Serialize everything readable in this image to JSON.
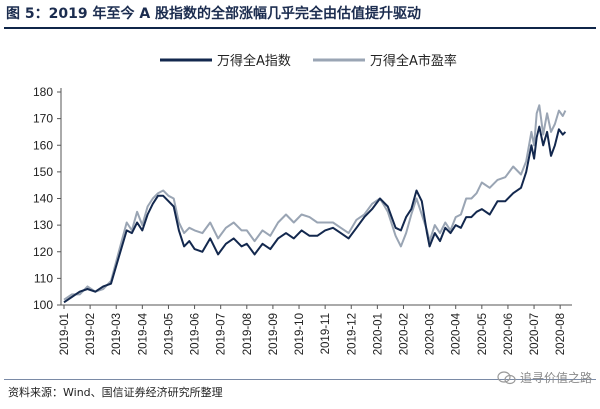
{
  "header": {
    "title": "图 5：2019 年至今 A 股指数的全部涨幅几乎完全由估值提升驱动"
  },
  "footer": {
    "source": "资料来源：Wind、国信证券经济研究所整理",
    "watermark": "追寻价值之路"
  },
  "colors": {
    "series_index": "#13284e",
    "series_pe": "#9aa5b4",
    "title_rule": "#0f2548"
  },
  "chart_data": {
    "type": "line",
    "ylim": [
      100,
      180
    ],
    "yticks": [
      100,
      110,
      120,
      130,
      140,
      150,
      160,
      170,
      180
    ],
    "xticks": [
      "2019-01",
      "2019-02",
      "2019-03",
      "2019-04",
      "2019-05",
      "2019-06",
      "2019-07",
      "2019-08",
      "2019-09",
      "2019-10",
      "2019-11",
      "2019-12",
      "2020-01",
      "2020-02",
      "2020-03",
      "2020-04",
      "2020-05",
      "2020-06",
      "2020-07",
      "2020-08"
    ],
    "xlim": [
      0,
      19.3
    ],
    "legend_position": "top-center",
    "grid": false,
    "series": [
      {
        "name": "万得全A指数",
        "x": [
          0,
          0.3,
          0.6,
          0.9,
          1.2,
          1.5,
          1.8,
          2.1,
          2.4,
          2.6,
          2.8,
          3.0,
          3.2,
          3.4,
          3.6,
          3.8,
          4.0,
          4.2,
          4.4,
          4.6,
          4.8,
          5.0,
          5.3,
          5.6,
          5.9,
          6.2,
          6.5,
          6.8,
          7.0,
          7.3,
          7.6,
          7.9,
          8.2,
          8.5,
          8.8,
          9.1,
          9.4,
          9.7,
          10.0,
          10.3,
          10.6,
          10.9,
          11.2,
          11.5,
          11.8,
          12.1,
          12.4,
          12.7,
          12.9,
          13.1,
          13.3,
          13.5,
          13.7,
          13.9,
          14.0,
          14.2,
          14.4,
          14.6,
          14.8,
          15.0,
          15.2,
          15.4,
          15.6,
          15.8,
          16.0,
          16.3,
          16.6,
          16.9,
          17.2,
          17.5,
          17.7,
          17.9,
          18.0,
          18.1,
          18.2,
          18.35,
          18.5,
          18.65,
          18.8,
          18.95,
          19.1,
          19.2
        ],
        "values": [
          101,
          103,
          105,
          106,
          105,
          107,
          108,
          118,
          128,
          127,
          131,
          128,
          134,
          138,
          141,
          141,
          139,
          137,
          128,
          122,
          124,
          121,
          120,
          125,
          119,
          123,
          125,
          122,
          123,
          119,
          123,
          121,
          125,
          127,
          125,
          128,
          126,
          126,
          128,
          129,
          127,
          125,
          129,
          133,
          136,
          140,
          137,
          129,
          128,
          133,
          136,
          143,
          139,
          127,
          122,
          127,
          124,
          129,
          127,
          130,
          129,
          133,
          133,
          135,
          136,
          134,
          139,
          139,
          142,
          144,
          150,
          160,
          155,
          163,
          167,
          160,
          165,
          156,
          160,
          166,
          164,
          165
        ]
      },
      {
        "name": "万得全A市盈率",
        "x": [
          0,
          0.3,
          0.6,
          0.9,
          1.2,
          1.5,
          1.8,
          2.1,
          2.4,
          2.6,
          2.8,
          3.0,
          3.2,
          3.4,
          3.6,
          3.8,
          4.0,
          4.2,
          4.4,
          4.6,
          4.8,
          5.0,
          5.3,
          5.6,
          5.9,
          6.2,
          6.5,
          6.8,
          7.0,
          7.3,
          7.6,
          7.9,
          8.2,
          8.5,
          8.8,
          9.1,
          9.4,
          9.7,
          10.0,
          10.3,
          10.6,
          10.9,
          11.2,
          11.5,
          11.8,
          12.1,
          12.4,
          12.7,
          12.9,
          13.1,
          13.3,
          13.5,
          13.7,
          13.9,
          14.0,
          14.2,
          14.4,
          14.6,
          14.8,
          15.0,
          15.2,
          15.4,
          15.6,
          15.8,
          16.0,
          16.3,
          16.6,
          16.9,
          17.2,
          17.5,
          17.7,
          17.9,
          18.0,
          18.1,
          18.2,
          18.35,
          18.5,
          18.65,
          18.8,
          18.95,
          19.1,
          19.2
        ],
        "values": [
          102,
          104,
          104,
          107,
          105,
          106,
          109,
          120,
          131,
          128,
          135,
          130,
          137,
          140,
          142,
          143,
          141,
          140,
          131,
          127,
          129,
          128,
          127,
          131,
          125,
          129,
          131,
          128,
          128,
          124,
          128,
          126,
          131,
          134,
          131,
          134,
          133,
          131,
          131,
          131,
          129,
          127,
          132,
          134,
          138,
          140,
          135,
          126,
          122,
          127,
          134,
          140,
          134,
          128,
          124,
          130,
          127,
          131,
          128,
          133,
          134,
          140,
          140,
          142,
          146,
          144,
          147,
          148,
          152,
          149,
          154,
          165,
          160,
          172,
          175,
          164,
          172,
          165,
          168,
          173,
          171,
          173
        ]
      }
    ]
  }
}
